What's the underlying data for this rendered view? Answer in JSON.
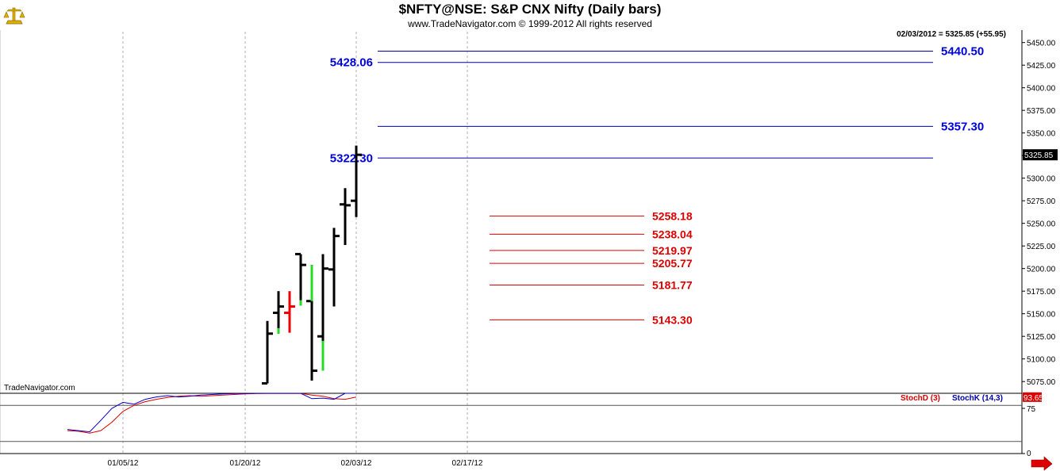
{
  "header": {
    "title": "$NFTY@NSE:  S&P CNX Nifty  (Daily bars)",
    "subtitle": "www.TradeNavigator.com © 1999-2012 All rights reserved",
    "readout": "02/03/2012 = 5325.85 (+55.95)"
  },
  "watermark": "TradeNavigator.com",
  "logo": {
    "icon": "trade-navigator-logo-icon",
    "color": "#e0b000"
  },
  "scroll": {
    "icon": "right-arrow-icon",
    "color": "#dd0000"
  },
  "chart_data": [
    {
      "type": "ohlc",
      "title": "$NFTY@NSE:  S&P CNX Nifty  (Daily bars)",
      "ylim": [
        5062,
        5462
      ],
      "y_ticks": [
        "5450.00",
        "5425.00",
        "5400.00",
        "5375.00",
        "5350.00",
        "5325.00",
        "5300.00",
        "5275.00",
        "5250.00",
        "5225.00",
        "5200.00",
        "5175.00",
        "5150.00",
        "5125.00",
        "5100.00",
        "5075.00"
      ],
      "y_tick_values": [
        5450,
        5425,
        5400,
        5375,
        5350,
        5325,
        5300,
        5275,
        5250,
        5225,
        5200,
        5175,
        5150,
        5125,
        5100,
        5075
      ],
      "x_ticks": [
        {
          "label": "01/05/12",
          "date": "2012-01-05"
        },
        {
          "label": "01/20/12",
          "date": "2012-01-20"
        },
        {
          "label": "02/03/12",
          "date": "2012-02-03"
        },
        {
          "label": "02/17/12",
          "date": "2012-02-17"
        }
      ],
      "last_value_label": "5325.85",
      "bars": [
        {
          "date": "2012-01-24",
          "open": 5073,
          "high": 5142,
          "low": 5073,
          "close": 5128,
          "color": "#000000"
        },
        {
          "date": "2012-01-25",
          "open": 5151,
          "high": 5175,
          "low": 5128,
          "close": 5158,
          "color": "#000000"
        },
        {
          "date": "2012-01-26",
          "open": 5151,
          "high": 5175,
          "low": 5129,
          "close": 5158,
          "color": "#ee0000"
        },
        {
          "date": "2012-01-27",
          "open": 5216,
          "high": 5216,
          "low": 5159,
          "close": 5204,
          "color": "#000000"
        },
        {
          "date": "2012-01-30",
          "open": 5164,
          "high": 5204,
          "low": 5076,
          "close": 5087,
          "color": "#000000"
        },
        {
          "date": "2012-01-31",
          "open": 5125,
          "high": 5216,
          "low": 5087,
          "close": 5200,
          "color": "#000000"
        },
        {
          "date": "2012-02-01",
          "open": 5199,
          "high": 5245,
          "low": 5158,
          "close": 5236,
          "color": "#000000"
        },
        {
          "date": "2012-02-02",
          "open": 5271,
          "high": 5289,
          "low": 5226,
          "close": 5270,
          "color": "#000000"
        },
        {
          "date": "2012-02-03",
          "open": 5275,
          "high": 5336,
          "low": 5257,
          "close": 5325.85,
          "color": "#000000"
        }
      ],
      "green_segments": [
        {
          "date": "2012-01-25",
          "from": 5128,
          "to": 5134
        },
        {
          "date": "2012-01-27",
          "from": 5159,
          "to": 5165
        },
        {
          "date": "2012-01-30",
          "from": 5164,
          "to": 5204
        },
        {
          "date": "2012-01-31",
          "from": 5087,
          "to": 5120
        }
      ],
      "levels": [
        {
          "value": 5440.5,
          "label": "5440.50",
          "color": "#0000aa",
          "text_color": "#0000dd",
          "from_date": "2012-01-20",
          "to_date": "2012-02-17",
          "label_side": "right"
        },
        {
          "value": 5428.06,
          "label": "5428.06",
          "color": "#0000aa",
          "text_color": "#0000dd",
          "from_date": "2012-01-20",
          "to_date": "2012-02-17",
          "label_side": "left"
        },
        {
          "value": 5357.3,
          "label": "5357.30",
          "color": "#0000aa",
          "text_color": "#0000dd",
          "from_date": "2012-01-20",
          "to_date": "2012-02-17",
          "label_side": "right"
        },
        {
          "value": 5322.3,
          "label": "5322.30",
          "color": "#0000aa",
          "text_color": "#0000dd",
          "from_date": "2012-01-20",
          "to_date": "2012-02-17",
          "label_side": "left"
        },
        {
          "value": 5258.18,
          "label": "5258.18",
          "color": "#dd0000",
          "text_color": "#dd0000",
          "from_date": "2012-01-30",
          "to_date": "2012-02-07",
          "label_side": "right"
        },
        {
          "value": 5238.04,
          "label": "5238.04",
          "color": "#dd0000",
          "text_color": "#dd0000",
          "from_date": "2012-01-30",
          "to_date": "2012-02-07",
          "label_side": "right"
        },
        {
          "value": 5219.97,
          "label": "5219.97",
          "color": "#dd0000",
          "text_color": "#dd0000",
          "from_date": "2012-01-30",
          "to_date": "2012-02-07",
          "label_side": "right"
        },
        {
          "value": 5205.77,
          "label": "5205.77",
          "color": "#dd0000",
          "text_color": "#dd0000",
          "from_date": "2012-01-30",
          "to_date": "2012-02-07",
          "label_side": "right"
        },
        {
          "value": 5181.77,
          "label": "5181.77",
          "color": "#dd0000",
          "text_color": "#dd0000",
          "from_date": "2012-01-30",
          "to_date": "2012-02-07",
          "label_side": "right"
        },
        {
          "value": 5143.3,
          "label": "5143.30",
          "color": "#dd0000",
          "text_color": "#dd0000",
          "from_date": "2012-01-30",
          "to_date": "2012-02-07",
          "label_side": "right"
        }
      ],
      "grid": true,
      "grid_style": "vertical dashed at x ticks"
    },
    {
      "type": "line",
      "title": "",
      "ylim": [
        0,
        100
      ],
      "y_ticks": [
        "75",
        "0"
      ],
      "y_tick_values": [
        75,
        0
      ],
      "ref_lines": [
        80,
        20
      ],
      "legend": [
        "StochD (3)",
        "StochK (14,3)"
      ],
      "legend_position": "top-right",
      "last_value_label": "93.65",
      "last_value_color": "#dd0000",
      "series": [
        {
          "name": "StochD (3)",
          "color": "#dd0000",
          "points": [
            [
              "2011-12-29",
              38
            ],
            [
              "2011-12-30",
              37
            ],
            [
              "2012-01-02",
              34
            ],
            [
              "2012-01-03",
              38
            ],
            [
              "2012-01-04",
              52
            ],
            [
              "2012-01-05",
              70
            ],
            [
              "2012-01-06",
              80
            ],
            [
              "2012-01-09",
              86
            ],
            [
              "2012-01-10",
              90
            ],
            [
              "2012-01-11",
              93
            ],
            [
              "2012-01-12",
              95
            ],
            [
              "2012-01-13",
              96
            ],
            [
              "2012-01-16",
              95
            ],
            [
              "2012-01-17",
              96
            ],
            [
              "2012-01-18",
              97
            ],
            [
              "2012-01-19",
              98
            ],
            [
              "2012-01-20",
              99
            ],
            [
              "2012-01-23",
              99.5
            ],
            [
              "2012-01-24",
              99.7
            ],
            [
              "2012-01-25",
              99.8
            ],
            [
              "2012-01-27",
              99.9
            ],
            [
              "2012-01-30",
              97
            ],
            [
              "2012-01-31",
              95
            ],
            [
              "2012-02-01",
              91
            ],
            [
              "2012-02-02",
              90
            ],
            [
              "2012-02-03",
              93.65
            ]
          ]
        },
        {
          "name": "StochK (14,3)",
          "color": "#0000cc",
          "points": [
            [
              "2011-12-29",
              40
            ],
            [
              "2011-12-30",
              38
            ],
            [
              "2012-01-02",
              36
            ],
            [
              "2012-01-03",
              55
            ],
            [
              "2012-01-04",
              75
            ],
            [
              "2012-01-05",
              85
            ],
            [
              "2012-01-06",
              82
            ],
            [
              "2012-01-09",
              90
            ],
            [
              "2012-01-10",
              94
            ],
            [
              "2012-01-11",
              96
            ],
            [
              "2012-01-12",
              94
            ],
            [
              "2012-01-13",
              95
            ],
            [
              "2012-01-16",
              97
            ],
            [
              "2012-01-17",
              98
            ],
            [
              "2012-01-18",
              99
            ],
            [
              "2012-01-19",
              99.5
            ],
            [
              "2012-01-20",
              99.8
            ],
            [
              "2012-01-23",
              100
            ],
            [
              "2012-01-24",
              100
            ],
            [
              "2012-01-25",
              100
            ],
            [
              "2012-01-27",
              100
            ],
            [
              "2012-01-30",
              91
            ],
            [
              "2012-01-31",
              92
            ],
            [
              "2012-02-01",
              90
            ],
            [
              "2012-02-02",
              100
            ],
            [
              "2012-02-03",
              100
            ]
          ]
        }
      ]
    }
  ]
}
